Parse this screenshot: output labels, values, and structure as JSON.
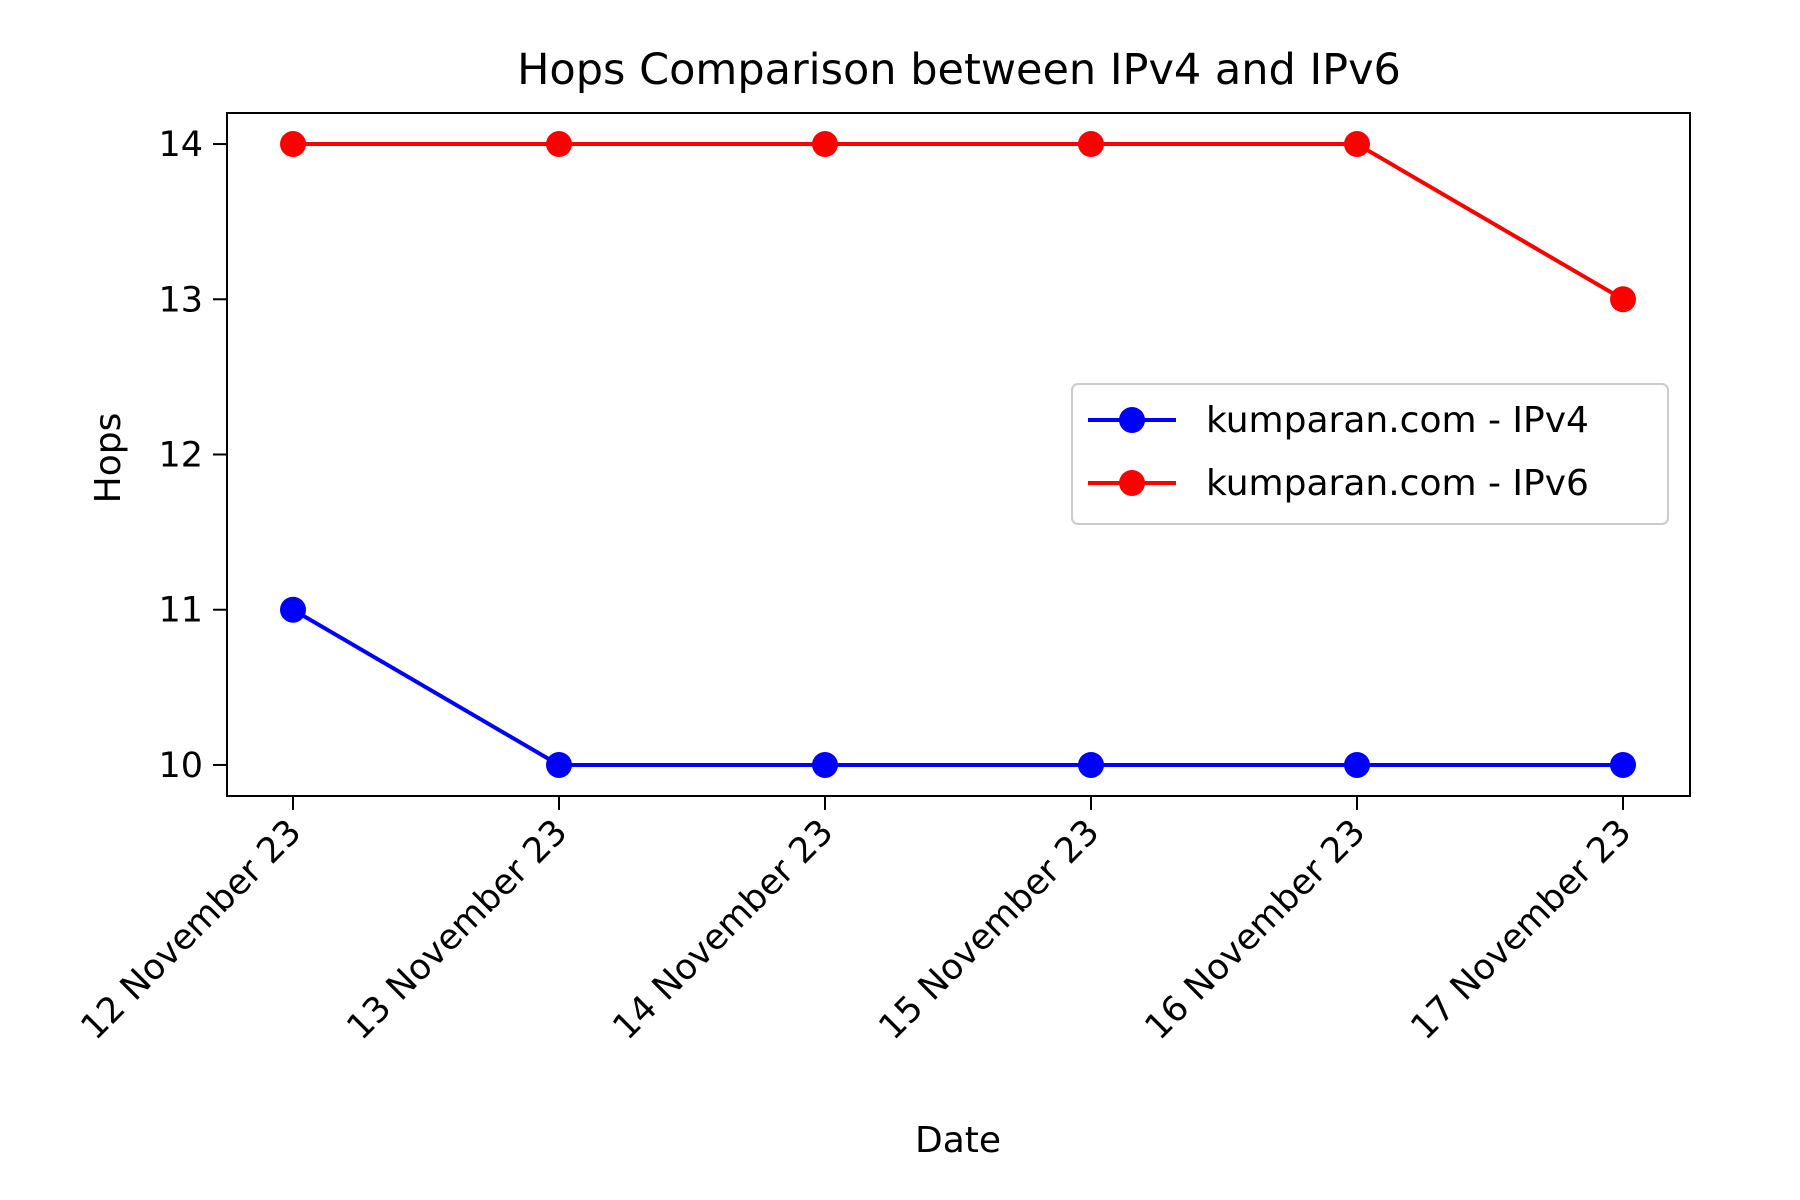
{
  "chart_data": {
    "type": "line",
    "title": "Hops Comparison between IPv4 and IPv6",
    "xlabel": "Date",
    "ylabel": "Hops",
    "categories": [
      "12 November 23",
      "13 November 23",
      "14 November 23",
      "15 November 23",
      "16 November 23",
      "17 November 23"
    ],
    "y_ticks": [
      10,
      11,
      12,
      13,
      14
    ],
    "ylim": [
      9.8,
      14.2
    ],
    "grid": false,
    "legend_position": "center-right",
    "series": [
      {
        "name": "kumparan.com - IPv4",
        "color": "#0000ff",
        "marker": "circle",
        "values": [
          11,
          10,
          10,
          10,
          10,
          10
        ]
      },
      {
        "name": "kumparan.com - IPv6",
        "color": "#ff0000",
        "marker": "circle",
        "values": [
          14,
          14,
          14,
          14,
          14,
          13
        ]
      }
    ]
  }
}
